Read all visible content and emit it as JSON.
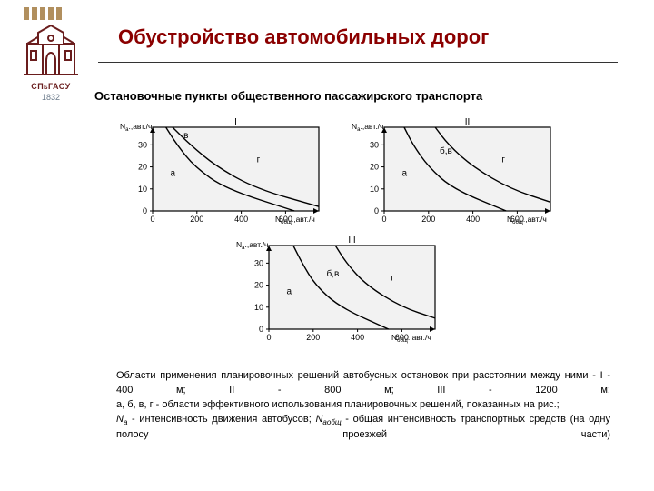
{
  "logo": {
    "bar_color": "#b18f5e",
    "building_stroke": "#6a1d1d",
    "text": "СПбГАСУ",
    "year": "1832"
  },
  "title": "Обустройство автомобильных дорог",
  "title_color": "#8b0000",
  "subtitle": "Остановочные пункты общественного пассажирского транспорта",
  "charts": {
    "axis_color": "#000000",
    "bg_color": "#f2f2f2",
    "xaxis_label": "N_общ.,авт./ч",
    "yaxis_label": "N_а.,авт./ч",
    "xticks": [
      0,
      200,
      400,
      600
    ],
    "yticks": [
      0,
      10,
      20,
      30
    ],
    "xlim": [
      0,
      750
    ],
    "ylim": [
      0,
      38
    ],
    "panels": [
      {
        "id": "I",
        "regions": {
          "a": [
            80,
            16
          ],
          "v": [
            140,
            33
          ],
          "g": [
            470,
            22
          ]
        },
        "curves": [
          {
            "p": [
              [
                60,
                38
              ],
              [
                110,
                30
              ],
              [
                190,
                20
              ],
              [
                330,
                10
              ],
              [
                640,
                0
              ]
            ]
          },
          {
            "p": [
              [
                90,
                38
              ],
              [
                170,
                30
              ],
              [
                290,
                20
              ],
              [
                470,
                10
              ],
              [
                750,
                2
              ]
            ]
          }
        ]
      },
      {
        "id": "II",
        "regions": {
          "a": [
            80,
            16
          ],
          "bv": [
            250,
            26
          ],
          "g": [
            530,
            22
          ]
        },
        "curves": [
          {
            "p": [
              [
                90,
                38
              ],
              [
                130,
                30
              ],
              [
                200,
                20
              ],
              [
                310,
                10
              ],
              [
                550,
                0
              ]
            ]
          },
          {
            "p": [
              [
                230,
                38
              ],
              [
                290,
                30
              ],
              [
                400,
                20
              ],
              [
                570,
                10
              ],
              [
                750,
                4
              ]
            ]
          }
        ]
      },
      {
        "id": "III",
        "regions": {
          "a": [
            80,
            16
          ],
          "bv": [
            260,
            24
          ],
          "g": [
            550,
            22
          ]
        },
        "curves": [
          {
            "p": [
              [
                110,
                38
              ],
              [
                150,
                30
              ],
              [
                210,
                20
              ],
              [
                320,
                10
              ],
              [
                540,
                0
              ]
            ]
          },
          {
            "p": [
              [
                300,
                38
              ],
              [
                350,
                30
              ],
              [
                440,
                20
              ],
              [
                600,
                10
              ],
              [
                750,
                5
              ]
            ]
          }
        ]
      }
    ]
  },
  "description": {
    "p1a": "Области применения планировочных решений автобусных остановок при расстоянии между ними - I - 400 м; II - 800 м; III - 1200 м:",
    "p2": "а, б, в, г - области эффективного использования планировочных решений, показанных на рис.;",
    "p3a": "N",
    "p3a_sub": "а",
    "p3b": " - интенсивность движения автобусов; ",
    "p3c": "N",
    "p3c_sub": "аобщ",
    "p3d": " - общая интенсивность транспортных средств (на одну полосу проезжей части)"
  }
}
